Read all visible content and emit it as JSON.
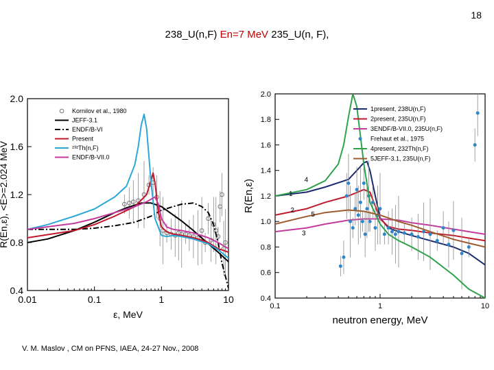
{
  "slide": {
    "number": "18",
    "title_a": "238_U(n,F) ",
    "title_b": "En=7 MeV",
    "title_c": " 235_U(n, F),",
    "footer": "V. M. Maslov , CM on PFNS, IAEA, 24-27 Nov., 2008"
  },
  "chart_data": [
    {
      "type": "line",
      "title": "",
      "xlabel": "ε, MeV",
      "ylabel": "R(En,ε), <E>=2.024 MeV",
      "xscale": "log",
      "xlim": [
        0.01,
        10
      ],
      "ylim": [
        0.4,
        2.0
      ],
      "xticks": [
        0.01,
        0.1,
        1,
        10
      ],
      "xtick_labels": [
        "0.01",
        "0.1",
        "1",
        "10"
      ],
      "yticks": [
        0.4,
        0.8,
        1.2,
        1.6,
        2.0
      ],
      "ytick_labels": [
        "0.4",
        "0.8",
        "1.2",
        "1.6",
        "2.0"
      ],
      "legend_position": "top-right",
      "series": [
        {
          "name": "Kornilov et al., 1980",
          "kind": "points",
          "color": "#777777",
          "x": [
            0.28,
            0.33,
            0.38,
            0.45,
            0.55,
            0.65,
            0.75,
            0.85,
            0.95,
            1.05,
            1.2,
            1.4,
            1.6,
            1.8,
            2.0,
            2.3,
            2.6,
            3.0,
            3.5,
            4.0,
            4.5,
            5.0,
            5.5,
            6.0,
            6.5,
            7.0,
            7.5,
            8.0,
            8.5,
            9.0
          ],
          "y": [
            1.12,
            1.13,
            1.14,
            1.15,
            1.2,
            1.28,
            1.3,
            1.18,
            1.0,
            0.9,
            0.88,
            0.87,
            0.86,
            0.88,
            0.87,
            0.87,
            0.86,
            0.85,
            0.84,
            0.9,
            0.8,
            1.0,
            0.82,
            0.95,
            0.9,
            0.85,
            1.1,
            1.2,
            0.75,
            0.8
          ]
        },
        {
          "name": "JEFF-3.1",
          "color": "#000000",
          "dash": "solid",
          "x": [
            0.01,
            0.02,
            0.05,
            0.1,
            0.2,
            0.3,
            0.5,
            0.7,
            1,
            1.5,
            2,
            3,
            5,
            7,
            10
          ],
          "y": [
            0.8,
            0.83,
            0.9,
            0.97,
            1.05,
            1.09,
            1.13,
            1.13,
            1.1,
            1.03,
            0.98,
            0.9,
            0.79,
            0.72,
            0.64
          ]
        },
        {
          "name": "ENDF/B-VI",
          "color": "#000000",
          "dash": "dashdot",
          "x": [
            0.01,
            0.05,
            0.1,
            0.2,
            0.4,
            0.7,
            1,
            1.5,
            2,
            3,
            4,
            5,
            6,
            7,
            8,
            10
          ],
          "y": [
            0.91,
            0.91,
            0.92,
            0.94,
            0.97,
            1.02,
            1.07,
            1.1,
            1.12,
            1.13,
            1.1,
            1.05,
            0.95,
            0.8,
            0.63,
            0.42
          ]
        },
        {
          "name": "Present",
          "color": "#c0182a",
          "dash": "solid",
          "x": [
            0.01,
            0.05,
            0.1,
            0.2,
            0.4,
            0.6,
            0.7,
            0.75,
            0.8,
            0.9,
            1.0,
            1.2,
            1.5,
            2,
            3,
            4,
            5,
            7,
            10
          ],
          "y": [
            0.84,
            0.9,
            0.95,
            1.02,
            1.1,
            1.2,
            1.32,
            1.38,
            1.3,
            1.05,
            0.93,
            0.89,
            0.87,
            0.86,
            0.84,
            0.82,
            0.8,
            0.75,
            0.72
          ]
        },
        {
          "name": "²³²Th(n,F)",
          "color": "#2aa7d8",
          "dash": "solid",
          "x": [
            0.01,
            0.02,
            0.05,
            0.1,
            0.2,
            0.3,
            0.4,
            0.45,
            0.5,
            0.55,
            0.6,
            0.7,
            0.8,
            1.0,
            1.2,
            1.5,
            2,
            3,
            5,
            7,
            10
          ],
          "y": [
            0.91,
            0.95,
            1.02,
            1.08,
            1.18,
            1.27,
            1.45,
            1.6,
            1.78,
            1.87,
            1.75,
            1.3,
            1.0,
            0.86,
            0.85,
            0.86,
            0.85,
            0.83,
            0.79,
            0.74,
            0.67
          ]
        },
        {
          "name": "ENDF/B-VII.0",
          "color": "#c23a9c",
          "dash": "solid",
          "x": [
            0.01,
            0.05,
            0.1,
            0.2,
            0.4,
            0.6,
            0.8,
            0.9,
            1.0,
            1.2,
            1.5,
            2,
            3,
            5,
            7,
            10
          ],
          "y": [
            0.91,
            0.96,
            1.0,
            1.05,
            1.1,
            1.14,
            1.18,
            1.12,
            1.0,
            0.93,
            0.91,
            0.9,
            0.88,
            0.84,
            0.8,
            0.75
          ]
        }
      ]
    },
    {
      "type": "line",
      "title": "",
      "xlabel": "neutron energy, MeV",
      "ylabel": "R(En,ε)",
      "xscale": "log",
      "xlim": [
        0.1,
        10
      ],
      "ylim": [
        0.4,
        2.0
      ],
      "xticks": [
        0.1,
        1,
        10
      ],
      "xtick_labels": [
        "0.1",
        "1",
        "10"
      ],
      "yticks": [
        0.4,
        0.6,
        0.8,
        1.0,
        1.2,
        1.4,
        1.6,
        1.8,
        2.0
      ],
      "ytick_labels": [
        "0.4",
        "0.6",
        "0.8",
        "1.0",
        "1.2",
        "1.4",
        "1.6",
        "1.8",
        "2.0"
      ],
      "legend_position": "top-right",
      "curve_labels": [
        {
          "text": "4",
          "x": 0.19,
          "y": 1.31
        },
        {
          "text": "1",
          "x": 0.135,
          "y": 1.2
        },
        {
          "text": "2",
          "x": 0.14,
          "y": 1.07
        },
        {
          "text": "5",
          "x": 0.22,
          "y": 1.04
        },
        {
          "text": "3",
          "x": 0.18,
          "y": 0.89
        }
      ],
      "series": [
        {
          "name": "1present, 238U(n,F)",
          "color": "#1a2a6c",
          "dash": "solid",
          "x": [
            0.1,
            0.2,
            0.3,
            0.5,
            0.6,
            0.7,
            0.75,
            0.8,
            0.9,
            1.0,
            1.2,
            1.5,
            2,
            3,
            5,
            7,
            10
          ],
          "y": [
            1.2,
            1.23,
            1.27,
            1.33,
            1.4,
            1.46,
            1.47,
            1.4,
            1.2,
            1.03,
            0.95,
            0.92,
            0.89,
            0.85,
            0.8,
            0.75,
            0.66
          ]
        },
        {
          "name": "2present, 235U(n,F)",
          "color": "#c0182a",
          "dash": "solid",
          "x": [
            0.1,
            0.2,
            0.3,
            0.5,
            0.7,
            0.8,
            0.9,
            1.0,
            1.2,
            1.5,
            2,
            3,
            5,
            7,
            10
          ],
          "y": [
            1.05,
            1.1,
            1.15,
            1.2,
            1.25,
            1.23,
            1.12,
            1.02,
            0.96,
            0.94,
            0.93,
            0.91,
            0.89,
            0.87,
            0.85
          ]
        },
        {
          "name": "3ENDF/B-VII.0, 235U(n,F)",
          "color": "#c23a9c",
          "dash": "solid",
          "x": [
            0.1,
            0.2,
            0.3,
            0.5,
            0.7,
            1.0,
            1.5,
            2,
            3,
            5,
            7,
            10
          ],
          "y": [
            0.92,
            0.95,
            0.98,
            1.01,
            1.02,
            1.02,
            1.01,
            0.99,
            0.97,
            0.94,
            0.92,
            0.9
          ]
        },
        {
          "name": "Frehaut et al., 1975",
          "kind": "points",
          "color": "#2f86c9",
          "x": [
            0.42,
            0.45,
            0.48,
            0.5,
            0.52,
            0.55,
            0.58,
            0.6,
            0.62,
            0.65,
            0.68,
            0.7,
            0.72,
            0.75,
            0.78,
            0.8,
            0.85,
            0.9,
            0.95,
            1.0,
            1.1,
            1.2,
            1.3,
            1.4,
            1.5,
            1.7,
            2.0,
            2.3,
            2.6,
            3.0,
            3.5,
            4.0,
            4.5,
            5.0,
            6.0,
            7.0,
            8.0,
            8.5
          ],
          "y": [
            0.65,
            0.72,
            1.2,
            1.3,
            1.0,
            0.95,
            1.1,
            1.25,
            1.05,
            1.15,
            1.0,
            1.3,
            0.9,
            1.1,
            1.2,
            1.0,
            1.15,
            0.95,
            1.05,
            1.1,
            0.9,
            0.95,
            0.92,
            0.9,
            0.92,
            0.91,
            0.9,
            0.88,
            0.92,
            0.9,
            0.85,
            0.95,
            0.82,
            0.93,
            0.75,
            0.8,
            1.6,
            1.85
          ]
        },
        {
          "name": "4present, 232Th(n,F)",
          "color": "#2ea24a",
          "dash": "solid",
          "x": [
            0.1,
            0.2,
            0.3,
            0.4,
            0.45,
            0.5,
            0.55,
            0.6,
            0.7,
            0.8,
            1.0,
            1.2,
            1.5,
            2,
            3,
            5,
            7,
            10
          ],
          "y": [
            1.2,
            1.25,
            1.32,
            1.45,
            1.6,
            1.82,
            2.0,
            1.9,
            1.45,
            1.15,
            0.98,
            0.9,
            0.85,
            0.8,
            0.72,
            0.58,
            0.47,
            0.4
          ]
        },
        {
          "name": "5JEFF-3.1, 235U(n,F)",
          "color": "#9c5a2e",
          "dash": "solid",
          "x": [
            0.1,
            0.2,
            0.3,
            0.5,
            0.7,
            1.0,
            1.5,
            2,
            3,
            5,
            7,
            10
          ],
          "y": [
            0.98,
            1.04,
            1.07,
            1.09,
            1.08,
            1.05,
            1.0,
            0.97,
            0.92,
            0.86,
            0.83,
            0.8
          ]
        }
      ]
    }
  ]
}
